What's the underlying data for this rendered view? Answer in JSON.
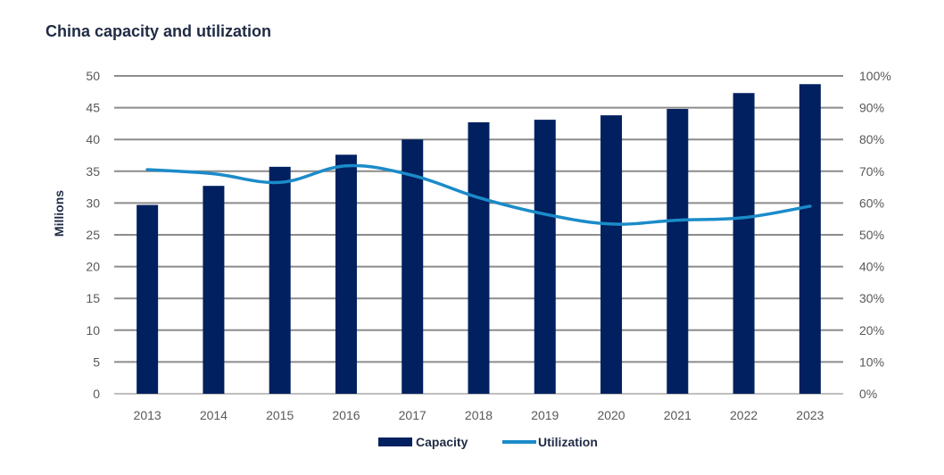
{
  "chart_data": {
    "type": "bar",
    "title": "China capacity and utilization",
    "xlabel": "",
    "ylabel": "Millions",
    "ylim": [
      0,
      50
    ],
    "y2lim": [
      0,
      100
    ],
    "yticks": [
      "0",
      "5",
      "10",
      "15",
      "20",
      "25",
      "30",
      "35",
      "40",
      "45",
      "50"
    ],
    "y2ticks": [
      "0%",
      "10%",
      "20%",
      "30%",
      "40%",
      "50%",
      "60%",
      "70%",
      "80%",
      "90%",
      "100%"
    ],
    "categories": [
      "2013",
      "2014",
      "2015",
      "2016",
      "2017",
      "2018",
      "2019",
      "2020",
      "2021",
      "2022",
      "2023"
    ],
    "grid": true,
    "legend_position": "bottom-center",
    "series": [
      {
        "name": "Capacity",
        "type": "bar",
        "axis": "left",
        "color": "#002060",
        "values": [
          29.7,
          32.7,
          35.7,
          37.6,
          40.0,
          42.7,
          43.1,
          43.8,
          44.8,
          47.3,
          48.7
        ]
      },
      {
        "name": "Utilization",
        "type": "line",
        "axis": "right",
        "color": "#1b8bc9",
        "values": [
          70.5,
          69.2,
          66.5,
          71.7,
          68.7,
          61.7,
          56.5,
          53.4,
          54.6,
          55.4,
          59.0
        ]
      }
    ]
  }
}
